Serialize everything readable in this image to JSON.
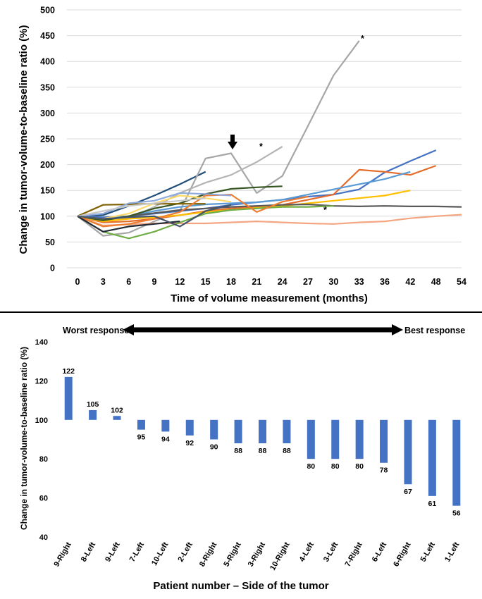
{
  "chart_data": [
    {
      "type": "line",
      "title": "",
      "xlabel": "Time of volume measurement (months)",
      "ylabel": "Change in tumor-volume-to-baseline ratio (%)",
      "x_categories": [
        "0",
        "3",
        "6",
        "9",
        "12",
        "15",
        "18",
        "21",
        "24",
        "27",
        "30",
        "33",
        "36",
        "42",
        "48",
        "54"
      ],
      "yticks": [
        "0",
        "50",
        "100",
        "150",
        "200",
        "250",
        "300",
        "350",
        "400",
        "450",
        "500"
      ],
      "ylim": [
        0,
        500
      ],
      "grid": true,
      "legend": "none",
      "asterisk": "*",
      "series": [
        {
          "color": "#1f4e79",
          "points": [
            [
              0,
              100
            ],
            [
              3,
              102
            ],
            [
              6,
              120
            ],
            [
              9,
              140
            ],
            [
              12,
              162
            ],
            [
              15,
              186
            ]
          ]
        },
        {
          "color": "#a6a6a6",
          "points": [
            [
              0,
              100
            ],
            [
              3,
              62
            ],
            [
              6,
              68
            ],
            [
              9,
              90
            ],
            [
              12,
              110
            ],
            [
              15,
              212
            ],
            [
              18,
              222
            ],
            [
              21,
              145
            ],
            [
              24,
              178
            ],
            [
              27,
              275
            ],
            [
              30,
              373
            ],
            [
              33,
              440
            ]
          ]
        },
        {
          "color": "#b4b4b4",
          "points": [
            [
              0,
              100
            ],
            [
              3,
              92
            ],
            [
              6,
              96
            ],
            [
              9,
              118
            ],
            [
              12,
              145
            ],
            [
              15,
              165
            ],
            [
              18,
              180
            ],
            [
              21,
              205
            ],
            [
              24,
              235
            ]
          ]
        },
        {
          "color": "#4472c4",
          "points": [
            [
              0,
              100
            ],
            [
              3,
              98
            ],
            [
              6,
              100
            ],
            [
              9,
              105
            ],
            [
              12,
              110
            ],
            [
              15,
              115
            ],
            [
              18,
              122
            ],
            [
              21,
              127
            ],
            [
              24,
              132
            ],
            [
              27,
              138
            ],
            [
              30,
              142
            ],
            [
              33,
              152
            ],
            [
              36,
              185
            ],
            [
              42,
              207
            ],
            [
              48,
              228
            ]
          ]
        },
        {
          "color": "#e46c2c",
          "points": [
            [
              0,
              100
            ],
            [
              3,
              88
            ],
            [
              6,
              90
            ],
            [
              9,
              95
            ],
            [
              12,
              102
            ],
            [
              15,
              110
            ],
            [
              18,
              115
            ],
            [
              21,
              118
            ],
            [
              24,
              122
            ],
            [
              27,
              132
            ],
            [
              30,
              142
            ],
            [
              33,
              190
            ],
            [
              36,
              186
            ],
            [
              42,
              180
            ],
            [
              48,
              198
            ]
          ]
        },
        {
          "color": "#5b9bd5",
          "points": [
            [
              0,
              100
            ],
            [
              3,
              95
            ],
            [
              6,
              100
            ],
            [
              9,
              110
            ],
            [
              12,
              118
            ],
            [
              15,
              123
            ],
            [
              18,
              125
            ],
            [
              21,
              127
            ],
            [
              24,
              132
            ],
            [
              27,
              142
            ],
            [
              30,
              152
            ],
            [
              33,
              162
            ],
            [
              36,
              172
            ],
            [
              42,
              186
            ]
          ]
        },
        {
          "color": "#ffc000",
          "points": [
            [
              0,
              100
            ],
            [
              3,
              90
            ],
            [
              6,
              95
            ],
            [
              9,
              98
            ],
            [
              12,
              102
            ],
            [
              15,
              108
            ],
            [
              18,
              112
            ],
            [
              21,
              116
            ],
            [
              24,
              120
            ],
            [
              27,
              125
            ],
            [
              30,
              130
            ],
            [
              33,
              135
            ],
            [
              36,
              140
            ],
            [
              42,
              150
            ]
          ]
        },
        {
          "color": "#595959",
          "points": [
            [
              0,
              100
            ],
            [
              3,
              92
            ],
            [
              6,
              100
            ],
            [
              9,
              106
            ],
            [
              12,
              112
            ],
            [
              15,
              115
            ],
            [
              18,
              118
            ],
            [
              21,
              120
            ],
            [
              24,
              122
            ],
            [
              27,
              123
            ],
            [
              30,
              120
            ],
            [
              33,
              119
            ],
            [
              36,
              120
            ],
            [
              42,
              119
            ],
            [
              48,
              119
            ],
            [
              54,
              118
            ]
          ]
        },
        {
          "color": "#f4a582",
          "points": [
            [
              0,
              100
            ],
            [
              3,
              82
            ],
            [
              6,
              84
            ],
            [
              9,
              86
            ],
            [
              12,
              86
            ],
            [
              15,
              86
            ],
            [
              18,
              88
            ],
            [
              21,
              90
            ],
            [
              24,
              88
            ],
            [
              27,
              86
            ],
            [
              30,
              85
            ],
            [
              33,
              88
            ],
            [
              36,
              90
            ],
            [
              42,
              96
            ],
            [
              48,
              100
            ],
            [
              54,
              103
            ]
          ]
        },
        {
          "color": "#70ad47",
          "points": [
            [
              0,
              100
            ],
            [
              3,
              70
            ],
            [
              6,
              57
            ],
            [
              9,
              70
            ],
            [
              12,
              88
            ],
            [
              15,
              105
            ],
            [
              18,
              112
            ],
            [
              21,
              115
            ],
            [
              24,
              118
            ],
            [
              27,
              118
            ],
            [
              30,
              120
            ]
          ]
        },
        {
          "color": "#375623",
          "points": [
            [
              0,
              100
            ],
            [
              3,
              92
            ],
            [
              6,
              100
            ],
            [
              9,
              115
            ],
            [
              12,
              125
            ],
            [
              15,
              143
            ],
            [
              18,
              153
            ],
            [
              21,
              156
            ],
            [
              24,
              158
            ]
          ]
        },
        {
          "color": "#7f6000",
          "points": [
            [
              0,
              100
            ],
            [
              3,
              122
            ],
            [
              6,
              123
            ],
            [
              9,
              124
            ],
            [
              12,
              124
            ],
            [
              15,
              124
            ]
          ]
        },
        {
          "color": "#ed7d31",
          "points": [
            [
              0,
              100
            ],
            [
              3,
              80
            ],
            [
              6,
              85
            ],
            [
              9,
              95
            ],
            [
              12,
              108
            ],
            [
              15,
              140
            ],
            [
              18,
              142
            ],
            [
              21,
              108
            ],
            [
              24,
              128
            ],
            [
              27,
              138
            ]
          ]
        },
        {
          "color": "#222a35",
          "points": [
            [
              0,
              100
            ],
            [
              3,
              70
            ],
            [
              6,
              80
            ],
            [
              9,
              85
            ],
            [
              12,
              90
            ]
          ]
        },
        {
          "color": "#8faadc",
          "points": [
            [
              0,
              100
            ],
            [
              3,
              105
            ],
            [
              6,
              125
            ],
            [
              9,
              130
            ],
            [
              12,
              145
            ],
            [
              15,
              143
            ],
            [
              18,
              140
            ]
          ]
        },
        {
          "color": "#ffd966",
          "points": [
            [
              0,
              100
            ],
            [
              3,
              95
            ],
            [
              6,
              105
            ],
            [
              9,
              125
            ],
            [
              12,
              140
            ],
            [
              15,
              135
            ],
            [
              18,
              128
            ]
          ]
        },
        {
          "color": "#c9c9c9",
          "points": [
            [
              0,
              100
            ],
            [
              3,
              110
            ],
            [
              6,
              120
            ],
            [
              9,
              125
            ],
            [
              12,
              130
            ],
            [
              15,
              135
            ]
          ]
        },
        {
          "color": "#44546a",
          "points": [
            [
              0,
              100
            ],
            [
              3,
              95
            ],
            [
              6,
              98
            ],
            [
              9,
              100
            ],
            [
              12,
              80
            ],
            [
              15,
              110
            ],
            [
              18,
              122
            ]
          ]
        }
      ]
    },
    {
      "type": "bar",
      "title": "",
      "xlabel": "Patient number – Side of the tumor",
      "ylabel": "Change in tumor-volume-to-baseline ratio (%)",
      "baseline": 100,
      "ylim": [
        40,
        140
      ],
      "yticks": [
        "40",
        "60",
        "80",
        "100",
        "120",
        "140"
      ],
      "grid": false,
      "color": "#4472c4",
      "worst_label": "Worst response",
      "best_label": "Best response",
      "categories": [
        "9-Right",
        "8-Left",
        "9-Left",
        "7-Left",
        "10-Left",
        "2-Left",
        "8-Right",
        "5-Right",
        "3-Right",
        "10-Right",
        "4-Left",
        "3-Left",
        "7-Right",
        "6-Left",
        "6-Right",
        "5-Left",
        "1-Left"
      ],
      "values": [
        122,
        105,
        102,
        95,
        94,
        92,
        90,
        88,
        88,
        88,
        80,
        80,
        80,
        78,
        67,
        61,
        56
      ]
    }
  ]
}
